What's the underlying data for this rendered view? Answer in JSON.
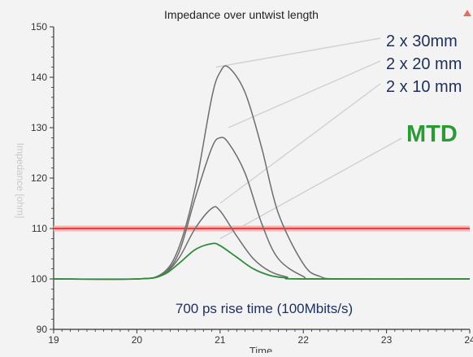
{
  "chart_data": {
    "type": "line",
    "title": "Impedance over untwist length",
    "xlabel": "Time",
    "ylabel": "Impedance [ohm]",
    "xlim": [
      19,
      24
    ],
    "ylim": [
      90,
      150
    ],
    "x_ticks": [
      "19",
      "20",
      "21",
      "22",
      "23",
      "24"
    ],
    "y_ticks": [
      "90",
      "100",
      "110",
      "120",
      "130",
      "140",
      "150"
    ],
    "grid": false,
    "reference_line": {
      "y": 110,
      "color": "#ee3b3b"
    },
    "series": [
      {
        "name": "2 x 30mm",
        "color": "#6e6e6e",
        "x": [
          19.0,
          20.0,
          20.3,
          20.5,
          20.7,
          20.9,
          21.0,
          21.1,
          21.3,
          21.5,
          21.7,
          22.0,
          22.2,
          22.5,
          24.0
        ],
        "y": [
          100,
          100,
          101,
          106,
          118,
          136,
          141,
          142,
          137,
          126,
          113,
          103,
          100.5,
          100,
          100
        ]
      },
      {
        "name": "2 x 20 mm",
        "color": "#6e6e6e",
        "x": [
          19.0,
          20.0,
          20.3,
          20.5,
          20.7,
          20.9,
          21.0,
          21.1,
          21.3,
          21.5,
          21.7,
          22.0,
          22.2,
          24.0
        ],
        "y": [
          100,
          100,
          101,
          105,
          116,
          126,
          128,
          127,
          121,
          111,
          104,
          100.5,
          100,
          100
        ]
      },
      {
        "name": "2 x 10 mm",
        "color": "#6e6e6e",
        "x": [
          19.0,
          20.0,
          20.3,
          20.5,
          20.7,
          20.9,
          21.0,
          21.2,
          21.4,
          21.6,
          21.8,
          22.0,
          24.0
        ],
        "y": [
          100,
          100,
          100.8,
          104,
          110,
          114,
          113.5,
          108.5,
          104,
          101.5,
          100.4,
          100,
          100
        ]
      },
      {
        "name": "MTD",
        "color": "#2e8b3a",
        "x": [
          19.0,
          20.0,
          20.3,
          20.5,
          20.7,
          20.9,
          21.0,
          21.2,
          21.4,
          21.6,
          21.8,
          22.0,
          24.0
        ],
        "y": [
          100,
          100,
          100.7,
          103,
          105.8,
          107,
          106.6,
          104.3,
          102,
          100.7,
          100.2,
          100,
          100
        ]
      }
    ],
    "annotations": [
      {
        "text": "2 x 30mm",
        "color": "#1f2f5a"
      },
      {
        "text": "2 x 20 mm",
        "color": "#1f2f5a"
      },
      {
        "text": "2 x 10 mm",
        "color": "#1f2f5a"
      },
      {
        "text": "MTD",
        "color": "#2b9a34"
      },
      {
        "text": "700 ps rise time (100Mbits/s)",
        "color": "#1f2f5a"
      }
    ]
  },
  "icons": {
    "corner_mark": "triangle-marker-icon"
  },
  "colors": {
    "background": "#f3f3f3",
    "axis": "#333333",
    "leader_lines": "#d0d0d0"
  }
}
